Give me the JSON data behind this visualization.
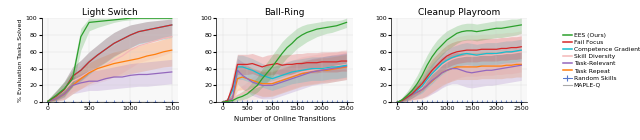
{
  "title1": "Light Switch",
  "title2": "Ball-Ring",
  "title3": "Cleanup Playroom",
  "xlabel": "Number of Online Transitions",
  "ylabel": "% Evaluation Tasks Solved",
  "bg_color": "#f0f0f0",
  "colors": {
    "EES": "#2ca02c",
    "FailFocus": "#d62728",
    "CompetenceGradient": "#17becf",
    "SkillDiversity": "#f4b8b8",
    "TaskRelevant": "#9467bd",
    "TaskRepeat": "#ff7f0e",
    "RandomSkills": "#5577cc",
    "MAPLE_Q": "#aaaaaa"
  },
  "ls_x": [
    0,
    100,
    200,
    300,
    400,
    500,
    600,
    700,
    800,
    900,
    1000,
    1100,
    1200,
    1300,
    1400,
    1500
  ],
  "ls_EES": [
    1,
    8,
    16,
    28,
    78,
    95,
    96,
    97,
    98,
    99,
    100,
    100,
    100,
    100,
    100,
    100
  ],
  "ls_EES_lo": [
    0,
    3,
    9,
    18,
    62,
    85,
    89,
    92,
    95,
    97,
    98,
    99,
    99,
    99,
    99,
    99
  ],
  "ls_EES_hi": [
    3,
    14,
    24,
    38,
    88,
    100,
    100,
    100,
    100,
    100,
    100,
    100,
    100,
    100,
    100,
    100
  ],
  "ls_FF": [
    1,
    7,
    15,
    31,
    38,
    48,
    56,
    63,
    70,
    75,
    80,
    84,
    86,
    88,
    90,
    92
  ],
  "ls_FF_lo": [
    0,
    2,
    7,
    20,
    26,
    34,
    42,
    48,
    55,
    60,
    65,
    70,
    72,
    74,
    76,
    78
  ],
  "ls_FF_hi": [
    3,
    13,
    25,
    42,
    50,
    60,
    68,
    76,
    83,
    88,
    92,
    94,
    96,
    97,
    98,
    99
  ],
  "ls_CG": [
    1,
    7,
    15,
    31,
    38,
    48,
    56,
    63,
    70,
    75,
    80,
    84,
    86,
    88,
    90,
    92
  ],
  "ls_CG_lo": [
    0,
    2,
    6,
    19,
    25,
    33,
    41,
    47,
    54,
    60,
    65,
    69,
    71,
    73,
    75,
    77
  ],
  "ls_CG_hi": [
    3,
    13,
    25,
    42,
    50,
    60,
    68,
    76,
    83,
    88,
    92,
    94,
    96,
    97,
    98,
    99
  ],
  "ls_SD": [
    1,
    7,
    14,
    25,
    30,
    36,
    40,
    44,
    50,
    55,
    62,
    67,
    70,
    73,
    76,
    78
  ],
  "ls_SD_lo": [
    0,
    2,
    4,
    13,
    16,
    20,
    23,
    26,
    30,
    35,
    41,
    47,
    50,
    53,
    56,
    60
  ],
  "ls_SD_hi": [
    3,
    13,
    23,
    38,
    44,
    52,
    58,
    62,
    68,
    74,
    80,
    84,
    86,
    88,
    90,
    92
  ],
  "ls_TR": [
    1,
    4,
    10,
    20,
    23,
    25,
    25,
    28,
    30,
    30,
    32,
    33,
    33,
    34,
    35,
    36
  ],
  "ls_TR_lo": [
    0,
    1,
    3,
    10,
    12,
    14,
    14,
    15,
    16,
    17,
    18,
    19,
    19,
    20,
    21,
    22
  ],
  "ls_TR_hi": [
    3,
    8,
    18,
    30,
    34,
    38,
    38,
    40,
    42,
    44,
    46,
    47,
    48,
    49,
    50,
    51
  ],
  "ls_TRep": [
    1,
    4,
    10,
    20,
    28,
    35,
    40,
    43,
    46,
    48,
    50,
    52,
    55,
    57,
    60,
    62
  ],
  "ls_TRep_lo": [
    0,
    1,
    3,
    10,
    16,
    22,
    26,
    28,
    30,
    32,
    34,
    36,
    38,
    40,
    42,
    43
  ],
  "ls_TRep_hi": [
    3,
    8,
    18,
    30,
    40,
    47,
    52,
    56,
    60,
    62,
    65,
    67,
    70,
    72,
    75,
    78
  ],
  "ls_RS": [
    0,
    0,
    0,
    0,
    0,
    0,
    0,
    0,
    0,
    0,
    0,
    0,
    0,
    0,
    0,
    0
  ],
  "ls_MQ": [
    0,
    0,
    0,
    0,
    0,
    0,
    0,
    0,
    0,
    0,
    0,
    0,
    0,
    0,
    0,
    0
  ],
  "br_x": [
    0,
    100,
    200,
    300,
    400,
    500,
    600,
    700,
    800,
    900,
    1000,
    1100,
    1200,
    1300,
    1400,
    1500,
    1600,
    1700,
    1800,
    1900,
    2000,
    2100,
    2200,
    2300,
    2400,
    2500
  ],
  "br_EES": [
    0,
    1,
    2,
    5,
    7,
    10,
    15,
    20,
    28,
    35,
    42,
    50,
    58,
    65,
    70,
    76,
    80,
    83,
    85,
    87,
    88,
    89,
    90,
    91,
    93,
    95
  ],
  "br_EES_lo": [
    0,
    0,
    0,
    2,
    3,
    5,
    8,
    12,
    18,
    24,
    30,
    38,
    46,
    53,
    58,
    64,
    68,
    72,
    75,
    78,
    80,
    82,
    83,
    85,
    87,
    89
  ],
  "br_EES_hi": [
    0,
    3,
    5,
    9,
    13,
    17,
    24,
    30,
    40,
    48,
    56,
    64,
    72,
    78,
    83,
    88,
    91,
    93,
    94,
    95,
    96,
    97,
    97,
    97,
    98,
    100
  ],
  "br_FF": [
    0,
    2,
    18,
    45,
    45,
    45,
    46,
    44,
    42,
    44,
    45,
    46,
    44,
    45,
    45,
    46,
    46,
    47,
    47,
    47,
    48,
    48,
    48,
    48,
    49,
    49
  ],
  "br_FF_lo": [
    0,
    0,
    8,
    33,
    33,
    33,
    34,
    32,
    30,
    32,
    33,
    34,
    32,
    33,
    33,
    34,
    34,
    35,
    35,
    35,
    36,
    36,
    36,
    36,
    37,
    37
  ],
  "br_FF_hi": [
    0,
    5,
    30,
    57,
    57,
    57,
    58,
    56,
    54,
    56,
    57,
    58,
    56,
    57,
    57,
    58,
    58,
    59,
    59,
    59,
    60,
    60,
    60,
    60,
    61,
    61
  ],
  "br_CG": [
    0,
    2,
    14,
    42,
    42,
    40,
    38,
    35,
    32,
    30,
    28,
    30,
    32,
    34,
    36,
    37,
    38,
    39,
    40,
    40,
    40,
    41,
    42,
    42,
    43,
    44
  ],
  "br_CG_lo": [
    0,
    0,
    4,
    27,
    27,
    25,
    23,
    20,
    18,
    16,
    14,
    16,
    18,
    20,
    22,
    23,
    24,
    25,
    26,
    26,
    26,
    27,
    28,
    28,
    29,
    30
  ],
  "br_CG_hi": [
    0,
    5,
    24,
    56,
    56,
    54,
    52,
    49,
    46,
    44,
    42,
    44,
    46,
    48,
    50,
    51,
    52,
    53,
    54,
    54,
    54,
    55,
    56,
    56,
    57,
    58
  ],
  "br_SD": [
    0,
    1,
    3,
    8,
    10,
    13,
    16,
    18,
    20,
    22,
    24,
    26,
    28,
    30,
    32,
    34,
    36,
    37,
    38,
    39,
    40,
    41,
    42,
    43,
    44,
    45
  ],
  "br_SD_lo": [
    0,
    0,
    0,
    1,
    2,
    2,
    3,
    4,
    5,
    6,
    8,
    10,
    12,
    14,
    16,
    18,
    20,
    21,
    22,
    23,
    24,
    25,
    26,
    27,
    28,
    29
  ],
  "br_SD_hi": [
    0,
    3,
    7,
    16,
    20,
    24,
    30,
    34,
    38,
    40,
    42,
    44,
    46,
    48,
    50,
    52,
    54,
    55,
    56,
    57,
    58,
    59,
    60,
    61,
    62,
    63
  ],
  "br_TR": [
    0,
    2,
    4,
    38,
    32,
    28,
    24,
    22,
    20,
    20,
    20,
    22,
    24,
    26,
    28,
    30,
    32,
    34,
    36,
    37,
    38,
    39,
    40,
    41,
    42,
    43
  ],
  "br_TR_lo": [
    0,
    0,
    0,
    22,
    16,
    12,
    8,
    6,
    4,
    4,
    4,
    6,
    8,
    10,
    12,
    14,
    16,
    18,
    20,
    21,
    22,
    23,
    24,
    25,
    26,
    27
  ],
  "br_TR_hi": [
    0,
    5,
    9,
    52,
    48,
    44,
    40,
    38,
    36,
    36,
    36,
    38,
    40,
    42,
    44,
    46,
    48,
    50,
    52,
    53,
    54,
    55,
    56,
    57,
    58,
    59
  ],
  "br_TRep": [
    0,
    2,
    4,
    28,
    30,
    28,
    26,
    24,
    22,
    22,
    22,
    24,
    26,
    28,
    30,
    32,
    34,
    35,
    36,
    37,
    38,
    38,
    39,
    40,
    41,
    42
  ],
  "br_TRep_lo": [
    0,
    0,
    0,
    14,
    15,
    13,
    11,
    9,
    7,
    7,
    7,
    9,
    11,
    13,
    15,
    17,
    19,
    20,
    21,
    22,
    23,
    23,
    24,
    25,
    26,
    27
  ],
  "br_TRep_hi": [
    0,
    5,
    9,
    42,
    45,
    43,
    41,
    39,
    37,
    37,
    37,
    39,
    41,
    43,
    45,
    47,
    49,
    50,
    51,
    52,
    53,
    53,
    54,
    55,
    56,
    57
  ],
  "br_RS": [
    0,
    0,
    0,
    0,
    0,
    0,
    0,
    0,
    0,
    0,
    0,
    0,
    0,
    0,
    0,
    0,
    0,
    0,
    0,
    0,
    0,
    0,
    0,
    0,
    0,
    0
  ],
  "br_MQ": [
    0,
    0,
    0,
    0,
    0,
    0,
    0,
    0,
    0,
    0,
    0,
    0,
    0,
    0,
    0,
    0,
    0,
    0,
    0,
    0,
    0,
    0,
    0,
    0,
    0,
    0
  ],
  "cp_x": [
    0,
    100,
    200,
    300,
    400,
    500,
    600,
    700,
    800,
    900,
    1000,
    1100,
    1200,
    1300,
    1400,
    1500,
    1600,
    1700,
    1800,
    1900,
    2000,
    2100,
    2200,
    2300,
    2400,
    2500
  ],
  "cp_EES": [
    0,
    3,
    8,
    14,
    22,
    32,
    44,
    54,
    62,
    68,
    74,
    78,
    82,
    84,
    85,
    85,
    84,
    85,
    86,
    87,
    88,
    88,
    89,
    90,
    91,
    92
  ],
  "cp_EES_lo": [
    0,
    1,
    4,
    8,
    14,
    22,
    32,
    42,
    50,
    56,
    62,
    66,
    70,
    73,
    74,
    74,
    73,
    74,
    75,
    76,
    77,
    77,
    78,
    79,
    80,
    82
  ],
  "cp_EES_hi": [
    0,
    6,
    13,
    22,
    32,
    44,
    56,
    66,
    74,
    80,
    85,
    88,
    91,
    93,
    94,
    94,
    93,
    94,
    95,
    96,
    97,
    97,
    98,
    99,
    99,
    100
  ],
  "cp_FF": [
    0,
    2,
    6,
    10,
    16,
    22,
    30,
    38,
    44,
    50,
    55,
    58,
    60,
    61,
    62,
    62,
    62,
    63,
    63,
    63,
    63,
    64,
    64,
    65,
    65,
    66
  ],
  "cp_FF_lo": [
    0,
    0,
    2,
    5,
    9,
    13,
    19,
    25,
    31,
    36,
    41,
    44,
    46,
    47,
    48,
    48,
    48,
    49,
    49,
    49,
    49,
    50,
    50,
    51,
    51,
    52
  ],
  "cp_FF_hi": [
    0,
    5,
    11,
    17,
    24,
    32,
    42,
    51,
    57,
    63,
    68,
    71,
    73,
    74,
    75,
    75,
    75,
    76,
    76,
    76,
    76,
    77,
    77,
    78,
    78,
    79
  ],
  "cp_CG": [
    0,
    2,
    6,
    10,
    14,
    19,
    27,
    34,
    40,
    46,
    50,
    53,
    55,
    57,
    58,
    57,
    56,
    57,
    58,
    58,
    58,
    59,
    60,
    60,
    61,
    62
  ],
  "cp_CG_lo": [
    0,
    0,
    2,
    5,
    8,
    11,
    17,
    22,
    28,
    33,
    37,
    40,
    42,
    44,
    45,
    44,
    43,
    44,
    45,
    45,
    45,
    46,
    47,
    47,
    48,
    49
  ],
  "cp_CG_hi": [
    0,
    5,
    11,
    17,
    22,
    28,
    38,
    46,
    52,
    58,
    63,
    66,
    68,
    70,
    71,
    70,
    69,
    70,
    71,
    71,
    71,
    72,
    73,
    73,
    74,
    75
  ],
  "cp_SD": [
    0,
    2,
    5,
    9,
    13,
    18,
    26,
    33,
    38,
    44,
    48,
    51,
    53,
    54,
    55,
    55,
    55,
    56,
    56,
    56,
    57,
    57,
    58,
    58,
    59,
    60
  ],
  "cp_SD_lo": [
    0,
    0,
    0,
    1,
    2,
    3,
    6,
    10,
    14,
    18,
    22,
    26,
    28,
    30,
    31,
    31,
    31,
    32,
    32,
    32,
    33,
    33,
    34,
    34,
    35,
    36
  ],
  "cp_SD_hi": [
    0,
    5,
    11,
    18,
    25,
    33,
    46,
    56,
    62,
    68,
    73,
    76,
    78,
    79,
    80,
    80,
    80,
    81,
    81,
    81,
    82,
    82,
    83,
    83,
    84,
    85
  ],
  "cp_TR": [
    0,
    2,
    5,
    9,
    12,
    15,
    20,
    26,
    30,
    35,
    38,
    40,
    40,
    38,
    36,
    35,
    36,
    37,
    38,
    38,
    39,
    40,
    41,
    42,
    43,
    44
  ],
  "cp_TR_lo": [
    0,
    0,
    1,
    3,
    4,
    5,
    7,
    10,
    13,
    17,
    20,
    22,
    22,
    20,
    18,
    17,
    18,
    19,
    20,
    20,
    21,
    22,
    23,
    24,
    25,
    26
  ],
  "cp_TR_hi": [
    0,
    5,
    10,
    16,
    21,
    26,
    34,
    42,
    48,
    54,
    57,
    59,
    59,
    57,
    55,
    54,
    55,
    56,
    57,
    57,
    58,
    59,
    60,
    61,
    62,
    63
  ],
  "cp_TRep": [
    0,
    2,
    5,
    9,
    12,
    15,
    20,
    25,
    30,
    35,
    38,
    40,
    42,
    42,
    42,
    42,
    42,
    43,
    43,
    43,
    43,
    43,
    44,
    44,
    45,
    45
  ],
  "cp_TRep_lo": [
    0,
    0,
    1,
    3,
    4,
    5,
    8,
    12,
    16,
    20,
    23,
    25,
    27,
    27,
    27,
    27,
    27,
    28,
    28,
    28,
    28,
    28,
    29,
    29,
    30,
    30
  ],
  "cp_TRep_hi": [
    0,
    5,
    10,
    16,
    21,
    26,
    34,
    40,
    46,
    52,
    55,
    57,
    59,
    59,
    59,
    59,
    59,
    60,
    60,
    60,
    60,
    60,
    61,
    61,
    62,
    62
  ],
  "cp_RS": [
    0,
    0,
    0,
    0,
    0,
    0,
    0,
    0,
    0,
    0,
    0,
    0,
    0,
    0,
    0,
    0,
    0,
    0,
    0,
    0,
    0,
    0,
    0,
    0,
    0,
    0
  ],
  "cp_MQ": [
    0,
    0,
    0,
    0,
    0,
    0,
    0,
    0,
    0,
    0,
    0,
    0,
    0,
    0,
    0,
    0,
    0,
    0,
    0,
    0,
    0,
    0,
    0,
    0,
    0,
    0
  ]
}
